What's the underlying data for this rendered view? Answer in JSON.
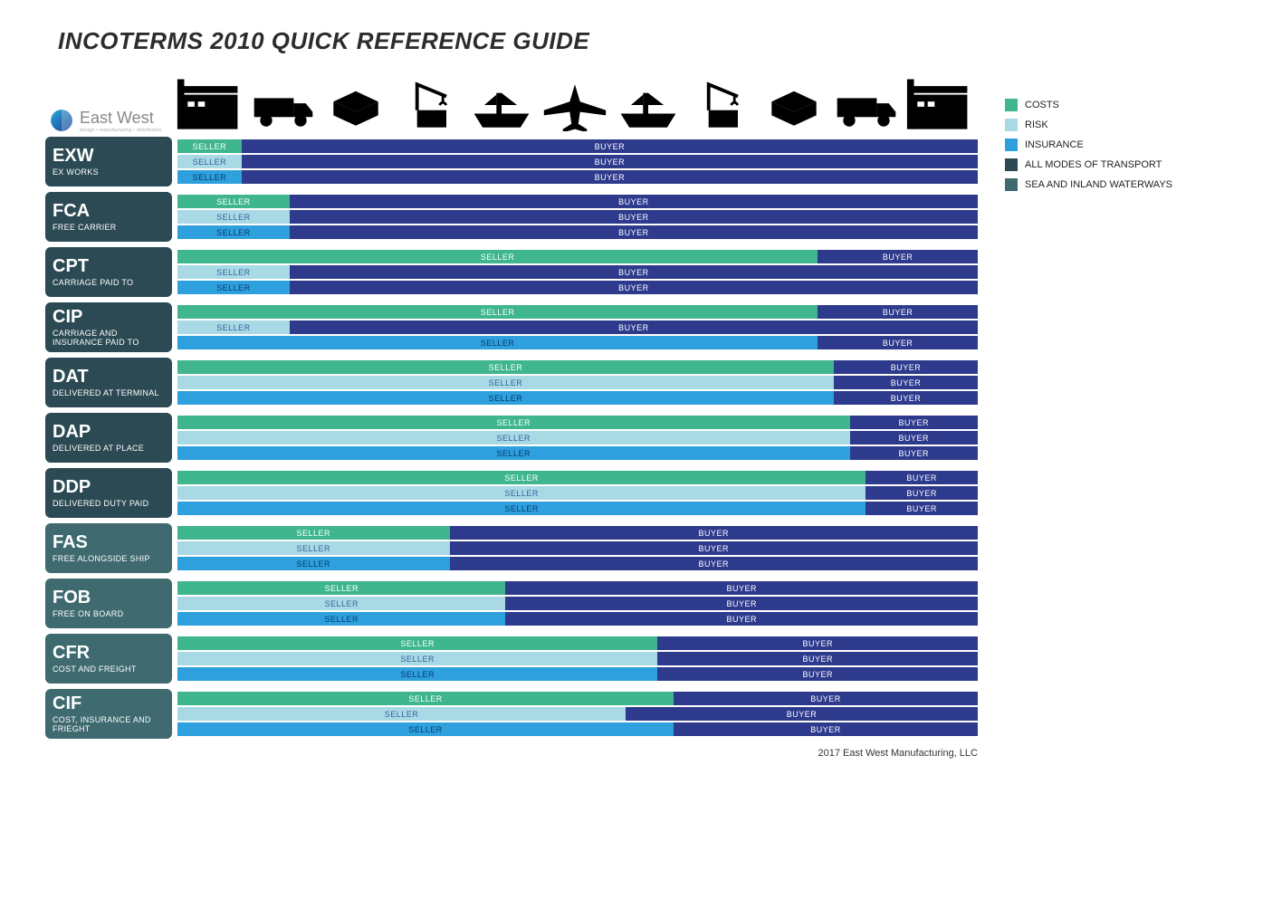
{
  "title": "INCOTERMS 2010 QUICK REFERENCE GUIDE",
  "logo": {
    "brand": "East West",
    "tag": "design • manufacturing • distribution"
  },
  "footer": "2017 East West Manufacturing, LLC",
  "colors": {
    "costs_seller": "#3fb68e",
    "risk_seller": "#a9d9e5",
    "insurance_seller": "#2ea0dd",
    "buyer": "#2e3a8c",
    "label_all_modes": "#2b4a53",
    "label_sea": "#3e6a70",
    "icon": "#000000",
    "logo_grad_a": "#2aa8e0",
    "logo_grad_b": "#1b3f8f"
  },
  "legend": [
    {
      "color_key": "costs_seller",
      "label": "COSTS"
    },
    {
      "color_key": "risk_seller",
      "label": "RISK"
    },
    {
      "color_key": "insurance_seller",
      "label": "INSURANCE"
    },
    {
      "color_key": "label_all_modes",
      "label": "ALL MODES OF TRANSPORT"
    },
    {
      "color_key": "label_sea",
      "label": "SEA AND INLAND WATERWAYS"
    }
  ],
  "labels": {
    "seller": "SELLER",
    "buyer": "BUYER"
  },
  "bar_types": [
    "costs",
    "risk",
    "insurance"
  ],
  "bar_seller_color": {
    "costs": "costs_seller",
    "risk": "risk_seller",
    "insurance": "insurance_seller"
  },
  "seller_text_color": {
    "costs": "#ffffff",
    "risk": "#2e66a0",
    "insurance": "#0b3a6b"
  },
  "terms": [
    {
      "code": "EXW",
      "name": "EX WORKS",
      "mode": "all",
      "splits": {
        "costs": 8,
        "risk": 8,
        "insurance": 8
      }
    },
    {
      "code": "FCA",
      "name": "FREE CARRIER",
      "mode": "all",
      "splits": {
        "costs": 14,
        "risk": 14,
        "insurance": 14
      }
    },
    {
      "code": "CPT",
      "name": "CARRIAGE PAID TO",
      "mode": "all",
      "splits": {
        "costs": 80,
        "risk": 14,
        "insurance": 14
      }
    },
    {
      "code": "CIP",
      "name": "CARRIAGE AND INSURANCE PAID TO",
      "mode": "all",
      "splits": {
        "costs": 80,
        "risk": 14,
        "insurance": 80
      }
    },
    {
      "code": "DAT",
      "name": "DELIVERED AT TERMINAL",
      "mode": "all",
      "splits": {
        "costs": 82,
        "risk": 82,
        "insurance": 82
      }
    },
    {
      "code": "DAP",
      "name": "DELIVERED AT PLACE",
      "mode": "all",
      "splits": {
        "costs": 84,
        "risk": 84,
        "insurance": 84
      }
    },
    {
      "code": "DDP",
      "name": "DELIVERED DUTY PAID",
      "mode": "all",
      "splits": {
        "costs": 86,
        "risk": 86,
        "insurance": 86
      }
    },
    {
      "code": "FAS",
      "name": "FREE ALONGSIDE SHIP",
      "mode": "sea",
      "splits": {
        "costs": 34,
        "risk": 34,
        "insurance": 34
      }
    },
    {
      "code": "FOB",
      "name": "FREE ON BOARD",
      "mode": "sea",
      "splits": {
        "costs": 41,
        "risk": 41,
        "insurance": 41
      }
    },
    {
      "code": "CFR",
      "name": "COST AND FREIGHT",
      "mode": "sea",
      "splits": {
        "costs": 60,
        "risk": 60,
        "insurance": 60
      }
    },
    {
      "code": "CIF",
      "name": "COST, INSURANCE AND FRIEGHT",
      "mode": "sea",
      "splits": {
        "costs": 62,
        "risk": 56,
        "insurance": 62
      }
    }
  ],
  "icons": [
    "warehouse",
    "truck",
    "package",
    "crane",
    "ship",
    "plane",
    "ship",
    "crane",
    "package",
    "truck",
    "warehouse"
  ]
}
